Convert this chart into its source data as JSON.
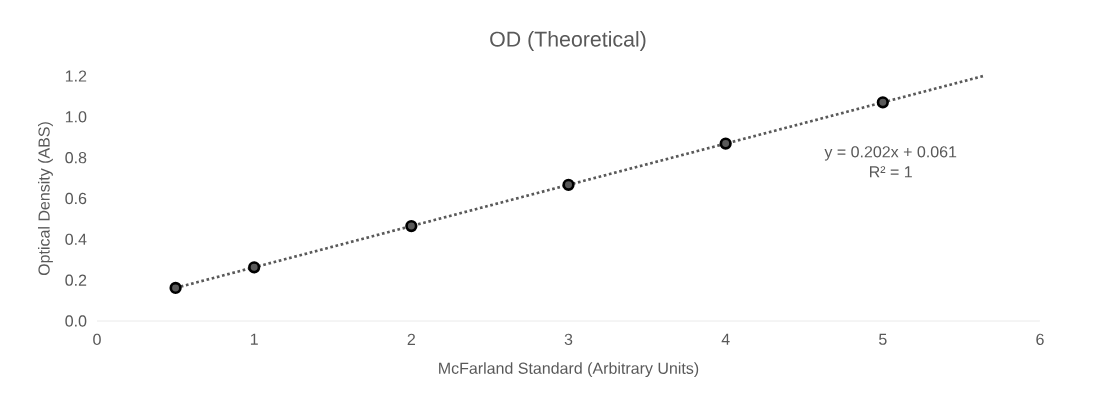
{
  "chart_data": {
    "type": "scatter",
    "title": "OD (Theoretical)",
    "xlabel": "McFarland Standard (Arbitrary Units)",
    "ylabel": "Optical Density (ABS)",
    "xlim": [
      0,
      6
    ],
    "xticks": [
      0,
      1,
      2,
      3,
      4,
      5,
      6
    ],
    "ylim": [
      0,
      1.2
    ],
    "yticks": [
      {
        "value": 0,
        "label": "0.0"
      },
      {
        "value": 0.2,
        "label": "0.2"
      },
      {
        "value": 0.4,
        "label": "0.4"
      },
      {
        "value": 0.6,
        "label": "0.6"
      },
      {
        "value": 0.8,
        "label": "0.8"
      },
      {
        "value": 1.0,
        "label": "1.0"
      },
      {
        "value": 1.2,
        "label": "1.2"
      }
    ],
    "grid": false,
    "series": [
      {
        "color": "#000000",
        "marker": "circle",
        "x": [
          0.5,
          1,
          2,
          3,
          4,
          5
        ],
        "values": [
          0.162,
          0.263,
          0.465,
          0.667,
          0.869,
          1.071
        ]
      },
      {
        "type": "line",
        "color": "#595959",
        "marker": "none",
        "line_style": "dotted",
        "x": [
          0.5,
          5.64
        ],
        "values": [
          0.162,
          1.2
        ]
      }
    ],
    "annotations": [
      "y = 0.202x + 0.061",
      "R² = 1"
    ]
  }
}
